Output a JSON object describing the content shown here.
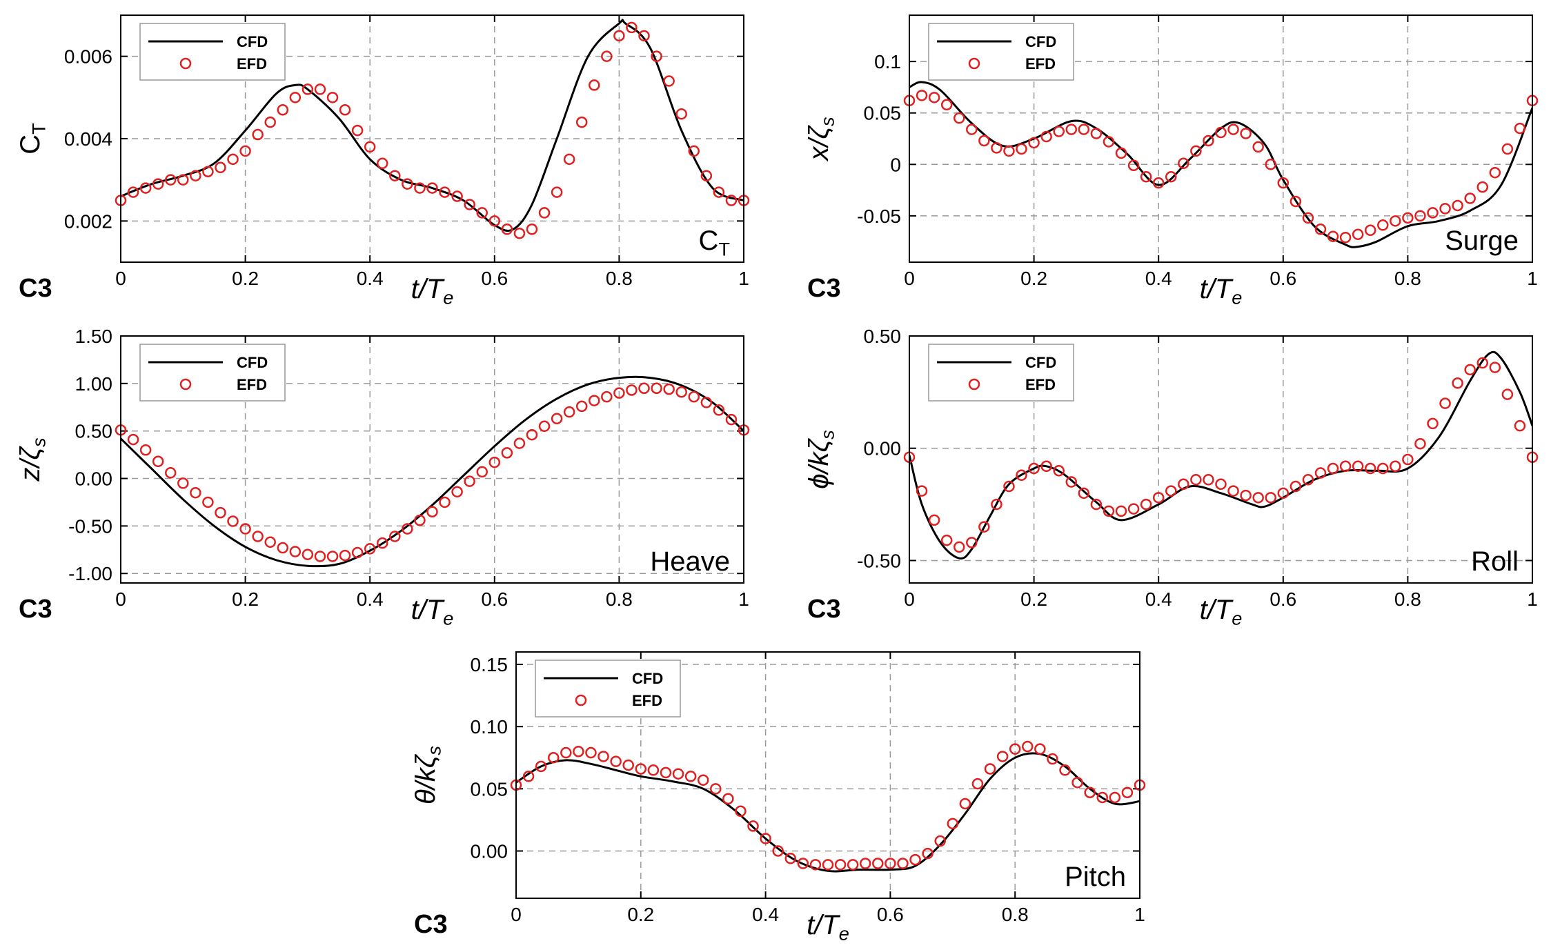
{
  "colors": {
    "cfd": "#000000",
    "efd": "#e02020",
    "grid": "#9a9a9a"
  },
  "chart_data": [
    {
      "id": "ct",
      "type": "line",
      "title": "C_T",
      "ylabel": {
        "main": "C",
        "sub": "T",
        "style": "upright"
      },
      "xlabel": {
        "main": "t/T",
        "sub": "e"
      },
      "case": "C3",
      "annotation": {
        "main": "C",
        "sub": "T"
      },
      "legend": {
        "cfd": "CFD",
        "efd": "EFD"
      },
      "xlim": [
        0,
        1
      ],
      "ylim": [
        0.001,
        0.007
      ],
      "xticks": [
        "0",
        "0.2",
        "0.4",
        "0.6",
        "0.8",
        "1"
      ],
      "yticks": [
        {
          "v": 0.002,
          "label": "0.002"
        },
        {
          "v": 0.004,
          "label": "0.004"
        },
        {
          "v": 0.006,
          "label": "0.006"
        }
      ],
      "series": [
        {
          "name": "CFD",
          "style": "line",
          "x": [
            0,
            0.05,
            0.1,
            0.15,
            0.2,
            0.25,
            0.28,
            0.3,
            0.35,
            0.4,
            0.45,
            0.5,
            0.55,
            0.6,
            0.63,
            0.66,
            0.7,
            0.75,
            0.8,
            0.81,
            0.85,
            0.9,
            0.95,
            1.0
          ],
          "values": [
            0.0026,
            0.0029,
            0.0031,
            0.0034,
            0.0042,
            0.0051,
            0.0053,
            0.0052,
            0.0045,
            0.0035,
            0.003,
            0.0028,
            0.0025,
            0.0019,
            0.0018,
            0.0024,
            0.004,
            0.006,
            0.0068,
            0.0068,
            0.0062,
            0.0042,
            0.0028,
            0.0025
          ]
        },
        {
          "name": "EFD",
          "style": "markers",
          "x": [
            0,
            0.02,
            0.04,
            0.06,
            0.08,
            0.1,
            0.12,
            0.14,
            0.16,
            0.18,
            0.2,
            0.22,
            0.24,
            0.26,
            0.28,
            0.3,
            0.32,
            0.34,
            0.36,
            0.38,
            0.4,
            0.42,
            0.44,
            0.46,
            0.48,
            0.5,
            0.52,
            0.54,
            0.56,
            0.58,
            0.6,
            0.62,
            0.64,
            0.66,
            0.68,
            0.7,
            0.72,
            0.74,
            0.76,
            0.78,
            0.8,
            0.82,
            0.84,
            0.86,
            0.88,
            0.9,
            0.92,
            0.94,
            0.96,
            0.98,
            1.0
          ],
          "values": [
            0.0025,
            0.0027,
            0.0028,
            0.0029,
            0.003,
            0.003,
            0.0031,
            0.0032,
            0.0033,
            0.0035,
            0.0037,
            0.0041,
            0.0044,
            0.0047,
            0.005,
            0.0052,
            0.0052,
            0.005,
            0.0047,
            0.0042,
            0.0038,
            0.0034,
            0.0031,
            0.0029,
            0.0028,
            0.0028,
            0.0027,
            0.0026,
            0.0024,
            0.0022,
            0.002,
            0.0018,
            0.0017,
            0.0018,
            0.0022,
            0.0027,
            0.0035,
            0.0044,
            0.0053,
            0.006,
            0.0065,
            0.0067,
            0.0065,
            0.006,
            0.0054,
            0.0046,
            0.0037,
            0.0031,
            0.0027,
            0.0025,
            0.0025
          ]
        }
      ]
    },
    {
      "id": "surge",
      "type": "line",
      "title": "Surge",
      "ylabel": {
        "main": "x/ζ",
        "sub": "s",
        "style": "italic"
      },
      "xlabel": {
        "main": "t/T",
        "sub": "e"
      },
      "case": "C3",
      "annotation": {
        "main": "Surge",
        "sub": ""
      },
      "legend": {
        "cfd": "CFD",
        "efd": "EFD"
      },
      "xlim": [
        0,
        1
      ],
      "ylim": [
        -0.095,
        0.145
      ],
      "xticks": [
        "0",
        "0.2",
        "0.4",
        "0.6",
        "0.8",
        "1"
      ],
      "yticks": [
        {
          "v": -0.05,
          "label": "-0.05"
        },
        {
          "v": 0,
          "label": "0"
        },
        {
          "v": 0.05,
          "label": "0.05"
        },
        {
          "v": 0.1,
          "label": "0.1"
        }
      ],
      "series": [
        {
          "name": "CFD",
          "style": "line",
          "x": [
            0,
            0.02,
            0.05,
            0.1,
            0.15,
            0.2,
            0.26,
            0.3,
            0.35,
            0.4,
            0.45,
            0.5,
            0.53,
            0.57,
            0.6,
            0.65,
            0.7,
            0.72,
            0.75,
            0.8,
            0.85,
            0.9,
            0.95,
            1.0
          ],
          "values": [
            0.075,
            0.08,
            0.072,
            0.04,
            0.018,
            0.025,
            0.042,
            0.035,
            0.01,
            -0.02,
            0.005,
            0.035,
            0.04,
            0.02,
            -0.015,
            -0.06,
            -0.078,
            -0.08,
            -0.075,
            -0.06,
            -0.055,
            -0.045,
            -0.02,
            0.055
          ]
        },
        {
          "name": "EFD",
          "style": "markers",
          "x": [
            0,
            0.02,
            0.04,
            0.06,
            0.08,
            0.1,
            0.12,
            0.14,
            0.16,
            0.18,
            0.2,
            0.22,
            0.24,
            0.26,
            0.28,
            0.3,
            0.32,
            0.34,
            0.36,
            0.38,
            0.4,
            0.42,
            0.44,
            0.46,
            0.48,
            0.5,
            0.52,
            0.54,
            0.56,
            0.58,
            0.6,
            0.62,
            0.64,
            0.66,
            0.68,
            0.7,
            0.72,
            0.74,
            0.76,
            0.78,
            0.8,
            0.82,
            0.84,
            0.86,
            0.88,
            0.9,
            0.92,
            0.94,
            0.96,
            0.98,
            1.0
          ],
          "values": [
            0.062,
            0.067,
            0.065,
            0.058,
            0.045,
            0.034,
            0.023,
            0.016,
            0.013,
            0.015,
            0.021,
            0.027,
            0.032,
            0.034,
            0.034,
            0.03,
            0.022,
            0.011,
            -0.001,
            -0.012,
            -0.018,
            -0.012,
            0.001,
            0.013,
            0.023,
            0.031,
            0.034,
            0.03,
            0.017,
            0.0,
            -0.018,
            -0.036,
            -0.052,
            -0.063,
            -0.07,
            -0.071,
            -0.068,
            -0.064,
            -0.059,
            -0.055,
            -0.052,
            -0.05,
            -0.047,
            -0.043,
            -0.04,
            -0.033,
            -0.022,
            -0.008,
            0.015,
            0.035,
            0.062
          ]
        }
      ]
    },
    {
      "id": "heave",
      "type": "line",
      "title": "Heave",
      "ylabel": {
        "main": "z/ζ",
        "sub": "s",
        "style": "italic"
      },
      "xlabel": {
        "main": "t/T",
        "sub": "e"
      },
      "case": "C3",
      "annotation": {
        "main": "Heave",
        "sub": ""
      },
      "legend": {
        "cfd": "CFD",
        "efd": "EFD"
      },
      "xlim": [
        0,
        1
      ],
      "ylim": [
        -1.1,
        1.5
      ],
      "xticks": [
        "0",
        "0.2",
        "0.4",
        "0.6",
        "0.8",
        "1"
      ],
      "yticks": [
        {
          "v": -1.0,
          "label": "-1.00"
        },
        {
          "v": -0.5,
          "label": "-0.50"
        },
        {
          "v": 0,
          "label": "0.00"
        },
        {
          "v": 0.5,
          "label": "0.50"
        },
        {
          "v": 1.0,
          "label": "1.00"
        },
        {
          "v": 1.5,
          "label": "1.50"
        }
      ],
      "series": [
        {
          "name": "CFD",
          "style": "line",
          "x": [
            0,
            0.05,
            0.1,
            0.15,
            0.2,
            0.25,
            0.3,
            0.35,
            0.4,
            0.45,
            0.5,
            0.55,
            0.6,
            0.65,
            0.7,
            0.75,
            0.8,
            0.85,
            0.9,
            0.95,
            1.0
          ],
          "values": [
            0.42,
            0.1,
            -0.22,
            -0.5,
            -0.72,
            -0.86,
            -0.92,
            -0.9,
            -0.76,
            -0.55,
            -0.28,
            0.03,
            0.34,
            0.62,
            0.84,
            0.99,
            1.06,
            1.06,
            0.98,
            0.8,
            0.5
          ]
        },
        {
          "name": "EFD",
          "style": "markers",
          "x": [
            0,
            0.02,
            0.04,
            0.06,
            0.08,
            0.1,
            0.12,
            0.14,
            0.16,
            0.18,
            0.2,
            0.22,
            0.24,
            0.26,
            0.28,
            0.3,
            0.32,
            0.34,
            0.36,
            0.38,
            0.4,
            0.42,
            0.44,
            0.46,
            0.48,
            0.5,
            0.52,
            0.54,
            0.56,
            0.58,
            0.6,
            0.62,
            0.64,
            0.66,
            0.68,
            0.7,
            0.72,
            0.74,
            0.76,
            0.78,
            0.8,
            0.82,
            0.84,
            0.86,
            0.88,
            0.9,
            0.92,
            0.94,
            0.96,
            0.98,
            1.0
          ],
          "values": [
            0.51,
            0.41,
            0.3,
            0.18,
            0.06,
            -0.05,
            -0.15,
            -0.25,
            -0.36,
            -0.45,
            -0.53,
            -0.61,
            -0.67,
            -0.73,
            -0.77,
            -0.8,
            -0.82,
            -0.82,
            -0.81,
            -0.78,
            -0.74,
            -0.68,
            -0.61,
            -0.53,
            -0.44,
            -0.35,
            -0.25,
            -0.14,
            -0.03,
            0.07,
            0.17,
            0.27,
            0.37,
            0.46,
            0.55,
            0.63,
            0.7,
            0.76,
            0.82,
            0.86,
            0.9,
            0.93,
            0.95,
            0.95,
            0.94,
            0.91,
            0.86,
            0.8,
            0.72,
            0.62,
            0.51
          ]
        }
      ]
    },
    {
      "id": "roll",
      "type": "line",
      "title": "Roll",
      "ylabel": {
        "main": "ϕ/kζ",
        "sub": "s",
        "style": "italic"
      },
      "xlabel": {
        "main": "t/T",
        "sub": "e"
      },
      "case": "C3",
      "annotation": {
        "main": "Roll",
        "sub": ""
      },
      "legend": {
        "cfd": "CFD",
        "efd": "EFD"
      },
      "xlim": [
        0,
        1
      ],
      "ylim": [
        -0.6,
        0.5
      ],
      "xticks": [
        "0",
        "0.2",
        "0.4",
        "0.6",
        "0.8",
        "1"
      ],
      "yticks": [
        {
          "v": -0.5,
          "label": "-0.50"
        },
        {
          "v": 0,
          "label": "0.00"
        },
        {
          "v": 0.5,
          "label": "0.50"
        }
      ],
      "series": [
        {
          "name": "CFD",
          "style": "line",
          "x": [
            0,
            0.02,
            0.05,
            0.08,
            0.1,
            0.13,
            0.16,
            0.2,
            0.22,
            0.25,
            0.3,
            0.34,
            0.4,
            0.45,
            0.5,
            0.55,
            0.57,
            0.6,
            0.65,
            0.7,
            0.75,
            0.8,
            0.85,
            0.9,
            0.93,
            0.95,
            0.98,
            1.0
          ],
          "values": [
            -0.03,
            -0.25,
            -0.42,
            -0.49,
            -0.45,
            -0.3,
            -0.16,
            -0.09,
            -0.08,
            -0.12,
            -0.24,
            -0.32,
            -0.25,
            -0.17,
            -0.2,
            -0.25,
            -0.26,
            -0.22,
            -0.14,
            -0.1,
            -0.1,
            -0.09,
            0.05,
            0.3,
            0.42,
            0.4,
            0.25,
            0.1
          ]
        },
        {
          "name": "EFD",
          "style": "markers",
          "x": [
            0,
            0.02,
            0.04,
            0.06,
            0.08,
            0.1,
            0.12,
            0.14,
            0.16,
            0.18,
            0.2,
            0.22,
            0.24,
            0.26,
            0.28,
            0.3,
            0.32,
            0.34,
            0.36,
            0.38,
            0.4,
            0.42,
            0.44,
            0.46,
            0.48,
            0.5,
            0.52,
            0.54,
            0.56,
            0.58,
            0.6,
            0.62,
            0.64,
            0.66,
            0.68,
            0.7,
            0.72,
            0.74,
            0.76,
            0.78,
            0.8,
            0.82,
            0.84,
            0.86,
            0.88,
            0.9,
            0.92,
            0.94,
            0.96,
            0.98,
            1.0
          ],
          "values": [
            -0.04,
            -0.19,
            -0.32,
            -0.41,
            -0.44,
            -0.42,
            -0.35,
            -0.25,
            -0.17,
            -0.12,
            -0.09,
            -0.08,
            -0.1,
            -0.15,
            -0.2,
            -0.25,
            -0.28,
            -0.28,
            -0.27,
            -0.25,
            -0.22,
            -0.19,
            -0.16,
            -0.14,
            -0.14,
            -0.16,
            -0.19,
            -0.21,
            -0.22,
            -0.22,
            -0.2,
            -0.17,
            -0.14,
            -0.11,
            -0.09,
            -0.08,
            -0.08,
            -0.09,
            -0.09,
            -0.08,
            -0.05,
            0.02,
            0.11,
            0.2,
            0.29,
            0.35,
            0.38,
            0.36,
            0.24,
            0.1,
            -0.04
          ]
        }
      ]
    },
    {
      "id": "pitch",
      "type": "line",
      "title": "Pitch",
      "ylabel": {
        "main": "θ/kζ",
        "sub": "s",
        "style": "italic"
      },
      "xlabel": {
        "main": "t/T",
        "sub": "e"
      },
      "case": "C3",
      "annotation": {
        "main": "Pitch",
        "sub": ""
      },
      "legend": {
        "cfd": "CFD",
        "efd": "EFD"
      },
      "xlim": [
        0,
        1
      ],
      "ylim": [
        -0.038,
        0.16
      ],
      "xticks": [
        "0",
        "0.2",
        "0.4",
        "0.6",
        "0.8",
        "1"
      ],
      "yticks": [
        {
          "v": 0,
          "label": "0.00"
        },
        {
          "v": 0.05,
          "label": "0.05"
        },
        {
          "v": 0.1,
          "label": "0.10"
        },
        {
          "v": 0.15,
          "label": "0.15"
        }
      ],
      "series": [
        {
          "name": "CFD",
          "style": "line",
          "x": [
            0,
            0.04,
            0.08,
            0.12,
            0.16,
            0.2,
            0.25,
            0.3,
            0.35,
            0.4,
            0.45,
            0.5,
            0.55,
            0.6,
            0.64,
            0.68,
            0.72,
            0.76,
            0.8,
            0.84,
            0.88,
            0.92,
            0.96,
            1.0
          ],
          "values": [
            0.055,
            0.068,
            0.073,
            0.07,
            0.065,
            0.06,
            0.056,
            0.05,
            0.033,
            0.01,
            -0.008,
            -0.016,
            -0.015,
            -0.015,
            -0.012,
            0.005,
            0.03,
            0.058,
            0.075,
            0.078,
            0.068,
            0.05,
            0.038,
            0.04
          ]
        },
        {
          "name": "EFD",
          "style": "markers",
          "x": [
            0,
            0.02,
            0.04,
            0.06,
            0.08,
            0.1,
            0.12,
            0.14,
            0.16,
            0.18,
            0.2,
            0.22,
            0.24,
            0.26,
            0.28,
            0.3,
            0.32,
            0.34,
            0.36,
            0.38,
            0.4,
            0.42,
            0.44,
            0.46,
            0.48,
            0.5,
            0.52,
            0.54,
            0.56,
            0.58,
            0.6,
            0.62,
            0.64,
            0.66,
            0.68,
            0.7,
            0.72,
            0.74,
            0.76,
            0.78,
            0.8,
            0.82,
            0.84,
            0.86,
            0.88,
            0.9,
            0.92,
            0.94,
            0.96,
            0.98,
            1.0
          ],
          "values": [
            0.053,
            0.06,
            0.068,
            0.075,
            0.079,
            0.08,
            0.079,
            0.076,
            0.072,
            0.069,
            0.066,
            0.065,
            0.063,
            0.062,
            0.06,
            0.057,
            0.05,
            0.042,
            0.032,
            0.02,
            0.01,
            0.0,
            -0.006,
            -0.01,
            -0.011,
            -0.011,
            -0.011,
            -0.011,
            -0.01,
            -0.01,
            -0.01,
            -0.01,
            -0.007,
            -0.002,
            0.008,
            0.022,
            0.038,
            0.054,
            0.066,
            0.076,
            0.082,
            0.084,
            0.082,
            0.074,
            0.065,
            0.055,
            0.047,
            0.043,
            0.043,
            0.047,
            0.053
          ]
        }
      ]
    }
  ]
}
